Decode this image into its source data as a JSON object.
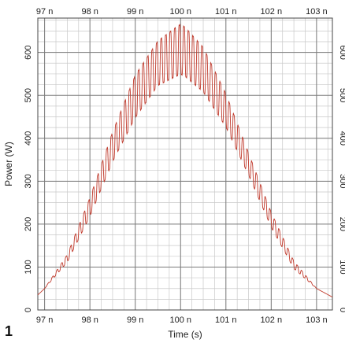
{
  "figure": {
    "panel_label": "1"
  },
  "chart_data": {
    "type": "line",
    "xlabel": "Time (s)",
    "ylabel": "Power (W)",
    "x_unit_suffix": " n",
    "xlim": [
      96.85,
      103.35
    ],
    "ylim": [
      0,
      680
    ],
    "x_ticks": [
      97,
      98,
      99,
      100,
      101,
      102,
      103
    ],
    "x_tick_labels": [
      "97 n",
      "98 n",
      "99 n",
      "100 n",
      "101 n",
      "102 n",
      "103 n"
    ],
    "y_ticks": [
      0,
      100,
      200,
      300,
      400,
      500,
      600
    ],
    "y_tick_labels": [
      "0",
      "100",
      "200",
      "300",
      "400",
      "500",
      "600"
    ],
    "grid": true,
    "minor_grid_per_major": 4,
    "legend": "none",
    "color": "#c0392b",
    "series": [
      {
        "envelope_upper": {
          "x": [
            96.85,
            97.0,
            97.5,
            98.0,
            98.5,
            99.0,
            99.5,
            99.9,
            100.0,
            100.1,
            100.5,
            101.0,
            101.5,
            102.0,
            102.5,
            103.0,
            103.35
          ],
          "y": [
            35,
            50,
            130,
            265,
            420,
            555,
            635,
            668,
            675,
            668,
            620,
            510,
            370,
            230,
            115,
            50,
            30
          ]
        },
        "envelope_lower": {
          "x": [
            96.85,
            97.0,
            97.5,
            98.0,
            98.5,
            99.0,
            99.5,
            99.9,
            100.0,
            100.1,
            100.5,
            101.0,
            101.5,
            102.0,
            102.5,
            103.0,
            103.35
          ],
          "y": [
            35,
            50,
            110,
            215,
            340,
            440,
            515,
            535,
            540,
            535,
            500,
            420,
            310,
            190,
            95,
            50,
            30
          ]
        },
        "oscillation_period": 0.1
      }
    ]
  }
}
